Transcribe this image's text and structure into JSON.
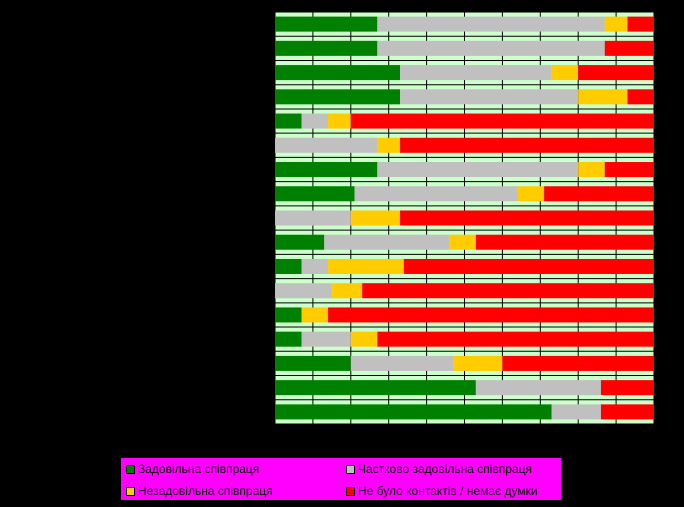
{
  "chart_data": {
    "type": "bar",
    "orientation": "horizontal",
    "stacked": true,
    "percent_scale": true,
    "xlim": [
      0,
      100
    ],
    "grid": true,
    "legend_placement": "bottom",
    "plot_background": "#ccffcc",
    "grid_color": "#000000",
    "series": [
      {
        "name": "Задовільна співпраця",
        "color": "#008000",
        "values": [
          27,
          27,
          33,
          33,
          7,
          0,
          27,
          21,
          0,
          13,
          7,
          0,
          7,
          7,
          20,
          53,
          73
        ]
      },
      {
        "name": "Частково задовільна співпраця",
        "color": "#c0c0c0",
        "values": [
          60,
          60,
          40,
          47,
          7,
          27,
          53,
          43,
          20,
          33,
          7,
          15,
          0,
          13,
          27,
          33,
          13
        ]
      },
      {
        "name": "Незадовільна співпраця",
        "color": "#ffcc00",
        "values": [
          6,
          0,
          7,
          13,
          6,
          6,
          7,
          7,
          13,
          7,
          20,
          8,
          7,
          7,
          13,
          0,
          0
        ]
      },
      {
        "name": "Не було контактів / немає думки",
        "color": "#ff0000",
        "values": [
          7,
          13,
          20,
          7,
          80,
          67,
          13,
          29,
          67,
          47,
          66,
          77,
          86,
          73,
          40,
          14,
          14
        ]
      }
    ]
  },
  "legend": {
    "background": "#ff00ff",
    "items": [
      {
        "label": "Задовільна співпраця",
        "color": "#008000"
      },
      {
        "label": "Частково задовільна співпраця",
        "color": "#c0c0c0"
      },
      {
        "label": "Незадовільна співпраця",
        "color": "#ffcc00"
      },
      {
        "label": "Не було контактів / немає думки",
        "color": "#ff0000"
      }
    ]
  }
}
